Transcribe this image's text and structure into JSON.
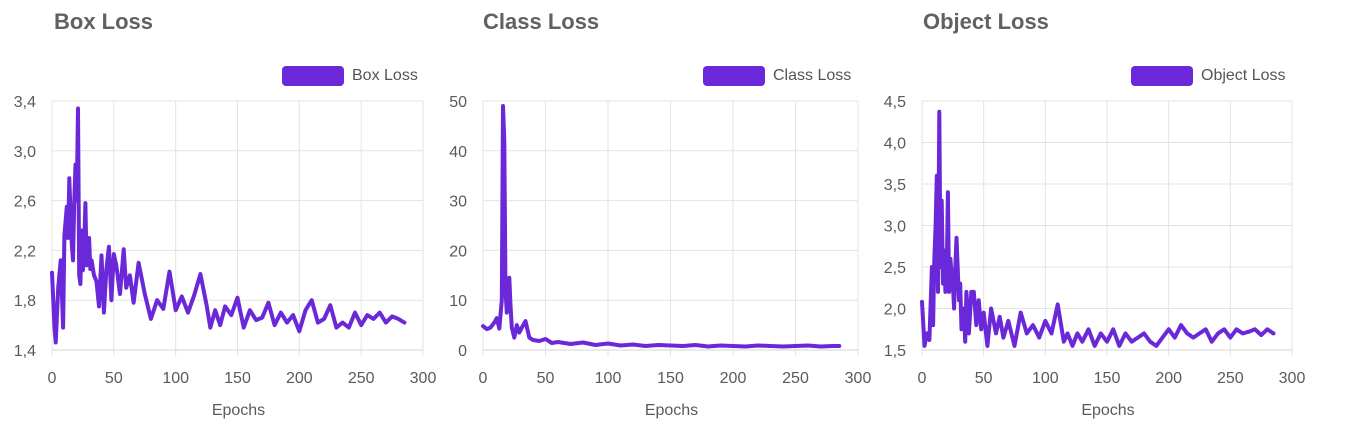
{
  "colors": {
    "series": "#6a28d9",
    "grid": "#e3e3e3",
    "text": "#5a5a5a",
    "title": "#616161"
  },
  "chart_data": [
    {
      "type": "line",
      "title": "Box Loss",
      "xlabel": "Epochs",
      "ylabel": "",
      "legend": "top-right",
      "grid": true,
      "xlim": [
        0,
        300
      ],
      "ylim": [
        1.4,
        3.4
      ],
      "x_ticks": [
        0,
        50,
        100,
        150,
        200,
        250,
        300
      ],
      "x_tick_labels": [
        "0",
        "50",
        "100",
        "150",
        "200",
        "250",
        "300"
      ],
      "y_ticks": [
        1.4,
        1.8,
        2.2,
        2.6,
        3.0,
        3.4
      ],
      "y_tick_labels": [
        "1,4",
        "1,8",
        "2,2",
        "2,6",
        "3,0",
        "3,4"
      ],
      "series": [
        {
          "name": "Box Loss",
          "x": [
            0,
            2,
            3,
            5,
            7,
            9,
            10,
            12,
            13,
            14,
            15,
            16,
            17,
            18,
            19,
            20,
            21,
            22,
            23,
            24,
            25,
            26,
            27,
            28,
            30,
            31,
            32,
            34,
            36,
            38,
            40,
            42,
            44,
            46,
            48,
            50,
            52,
            55,
            58,
            60,
            63,
            66,
            70,
            75,
            80,
            85,
            90,
            95,
            100,
            105,
            110,
            115,
            120,
            125,
            128,
            132,
            136,
            140,
            145,
            150,
            155,
            160,
            165,
            170,
            175,
            180,
            185,
            190,
            195,
            200,
            205,
            210,
            215,
            220,
            225,
            230,
            235,
            240,
            245,
            250,
            255,
            260,
            265,
            270,
            275,
            280,
            285
          ],
          "y": [
            2.02,
            1.58,
            1.46,
            1.9,
            2.12,
            1.58,
            2.32,
            2.55,
            2.3,
            2.78,
            2.5,
            2.25,
            2.12,
            2.6,
            2.89,
            2.6,
            3.34,
            2.0,
            1.93,
            2.36,
            2.04,
            2.25,
            2.58,
            2.08,
            2.3,
            2.05,
            2.12,
            2.0,
            1.95,
            1.75,
            2.16,
            1.7,
            2.05,
            2.23,
            1.8,
            2.17,
            2.08,
            1.85,
            2.21,
            1.9,
            2.0,
            1.78,
            2.1,
            1.85,
            1.65,
            1.8,
            1.73,
            2.03,
            1.72,
            1.83,
            1.7,
            1.84,
            2.01,
            1.76,
            1.58,
            1.72,
            1.6,
            1.75,
            1.68,
            1.82,
            1.58,
            1.72,
            1.64,
            1.66,
            1.78,
            1.6,
            1.7,
            1.62,
            1.68,
            1.55,
            1.72,
            1.8,
            1.62,
            1.65,
            1.76,
            1.58,
            1.62,
            1.58,
            1.7,
            1.6,
            1.68,
            1.65,
            1.7,
            1.62,
            1.67,
            1.65,
            1.62
          ]
        }
      ]
    },
    {
      "type": "line",
      "title": "Class Loss",
      "xlabel": "Epochs",
      "ylabel": "",
      "legend": "top-right",
      "grid": true,
      "xlim": [
        0,
        300
      ],
      "ylim": [
        0,
        50
      ],
      "x_ticks": [
        0,
        50,
        100,
        150,
        200,
        250,
        300
      ],
      "x_tick_labels": [
        "0",
        "50",
        "100",
        "150",
        "200",
        "250",
        "300"
      ],
      "y_ticks": [
        0,
        10,
        20,
        30,
        40,
        50
      ],
      "y_tick_labels": [
        "0",
        "10",
        "20",
        "30",
        "40",
        "50"
      ],
      "series": [
        {
          "name": "Class Loss",
          "x": [
            0,
            3,
            6,
            9,
            11,
            13,
            15,
            16,
            17,
            18,
            19,
            20,
            21,
            22,
            23,
            25,
            27,
            29,
            31,
            34,
            37,
            40,
            45,
            50,
            55,
            60,
            70,
            80,
            90,
            100,
            110,
            120,
            130,
            140,
            150,
            160,
            170,
            180,
            190,
            200,
            210,
            220,
            230,
            240,
            250,
            260,
            270,
            280,
            285
          ],
          "y": [
            4.8,
            4.2,
            4.5,
            5.5,
            6.4,
            4.3,
            10,
            49,
            42,
            12,
            7.5,
            12,
            14.5,
            9,
            4.5,
            2.5,
            5,
            3.5,
            4.5,
            5.8,
            2.5,
            2.0,
            1.8,
            2.2,
            1.4,
            1.6,
            1.2,
            1.5,
            1.0,
            1.3,
            0.9,
            1.1,
            0.8,
            1.0,
            0.9,
            0.8,
            1.0,
            0.7,
            0.9,
            0.8,
            0.7,
            0.9,
            0.8,
            0.7,
            0.8,
            0.9,
            0.7,
            0.8,
            0.8
          ]
        }
      ]
    },
    {
      "type": "line",
      "title": "Object Loss",
      "xlabel": "Epochs",
      "ylabel": "",
      "legend": "top-right",
      "grid": true,
      "xlim": [
        0,
        300
      ],
      "ylim": [
        1.5,
        4.5
      ],
      "x_ticks": [
        0,
        50,
        100,
        150,
        200,
        250,
        300
      ],
      "x_tick_labels": [
        "0",
        "50",
        "100",
        "150",
        "200",
        "250",
        "300"
      ],
      "y_ticks": [
        1.5,
        2.0,
        2.5,
        3.0,
        3.5,
        4.0,
        4.5
      ],
      "y_tick_labels": [
        "1,5",
        "2,0",
        "2,5",
        "3,0",
        "3,5",
        "4,0",
        "4,5"
      ],
      "series": [
        {
          "name": "Object Loss",
          "x": [
            0,
            2,
            4,
            6,
            8,
            9,
            10,
            11,
            12,
            13,
            14,
            15,
            16,
            17,
            18,
            19,
            20,
            21,
            22,
            23,
            24,
            25,
            26,
            27,
            28,
            30,
            31,
            32,
            33,
            34,
            35,
            36,
            38,
            40,
            42,
            44,
            46,
            48,
            50,
            53,
            56,
            60,
            63,
            66,
            70,
            75,
            80,
            85,
            90,
            95,
            100,
            105,
            110,
            115,
            118,
            122,
            126,
            130,
            135,
            140,
            145,
            150,
            155,
            160,
            165,
            170,
            175,
            180,
            185,
            190,
            195,
            200,
            205,
            210,
            215,
            220,
            225,
            230,
            235,
            240,
            245,
            250,
            255,
            260,
            265,
            270,
            275,
            280,
            285
          ],
          "y": [
            2.08,
            1.55,
            1.7,
            1.62,
            2.5,
            1.8,
            2.58,
            3.0,
            3.6,
            2.2,
            4.37,
            2.5,
            3.3,
            2.3,
            2.7,
            2.2,
            2.4,
            3.4,
            2.2,
            2.6,
            2.4,
            2.3,
            2.0,
            2.5,
            2.85,
            2.1,
            2.3,
            1.75,
            1.9,
            2.0,
            1.6,
            2.2,
            1.7,
            2.2,
            2.2,
            1.8,
            2.1,
            1.75,
            1.95,
            1.55,
            2.0,
            1.7,
            1.9,
            1.65,
            1.85,
            1.55,
            1.95,
            1.7,
            1.8,
            1.65,
            1.85,
            1.7,
            2.05,
            1.6,
            1.7,
            1.55,
            1.7,
            1.6,
            1.75,
            1.55,
            1.7,
            1.6,
            1.75,
            1.55,
            1.7,
            1.6,
            1.65,
            1.7,
            1.6,
            1.55,
            1.65,
            1.75,
            1.65,
            1.8,
            1.7,
            1.65,
            1.7,
            1.75,
            1.6,
            1.7,
            1.75,
            1.65,
            1.75,
            1.7,
            1.72,
            1.75,
            1.68,
            1.75,
            1.7
          ]
        }
      ]
    }
  ]
}
